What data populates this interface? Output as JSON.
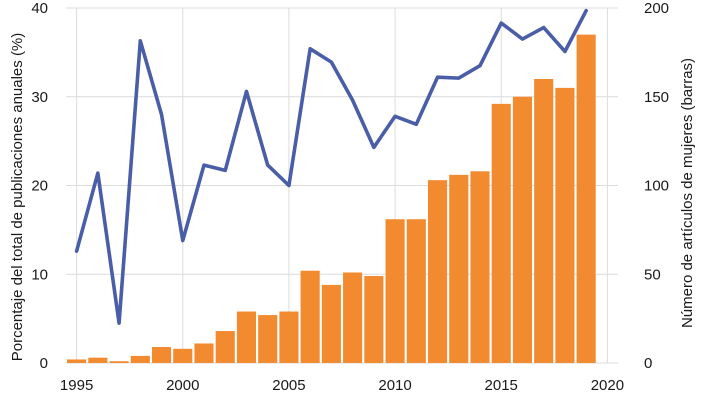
{
  "chart_data": {
    "type": "bar+line",
    "title": "",
    "x": [
      1995,
      1996,
      1997,
      1998,
      1999,
      2000,
      2001,
      2002,
      2003,
      2004,
      2005,
      2006,
      2007,
      2008,
      2009,
      2010,
      2011,
      2012,
      2013,
      2014,
      2015,
      2016,
      2017,
      2018,
      2019
    ],
    "xticks": [
      "1995",
      "2000",
      "2005",
      "2010",
      "2015",
      "2020"
    ],
    "xlim": [
      1994.5,
      2020.5
    ],
    "y_left": {
      "label": "Porcentaje del total de publicaciones anuales (%)",
      "ticks": [
        "0",
        "10",
        "20",
        "30",
        "40"
      ],
      "lim": [
        0,
        40
      ]
    },
    "y_right": {
      "label": "Número de artículos de mujeres (barras)",
      "ticks": [
        "0",
        "50",
        "100",
        "150",
        "200"
      ],
      "lim": [
        0,
        200
      ]
    },
    "series": [
      {
        "type": "bar",
        "axis": "right",
        "color": "#f28a30",
        "values": [
          2,
          3,
          1,
          4,
          9,
          8,
          11,
          18,
          29,
          27,
          29,
          52,
          44,
          51,
          49,
          81,
          81,
          103,
          106,
          108,
          146,
          150,
          160,
          155,
          185
        ]
      },
      {
        "type": "line",
        "axis": "left",
        "color": "#4a5ea8",
        "values": [
          12.6,
          21.4,
          4.5,
          36.3,
          28.0,
          13.8,
          22.3,
          21.7,
          30.6,
          22.3,
          20.0,
          35.4,
          33.9,
          29.6,
          24.3,
          27.8,
          26.9,
          32.2,
          32.1,
          33.5,
          38.3,
          36.5,
          37.8,
          35.1,
          39.7
        ]
      }
    ]
  }
}
